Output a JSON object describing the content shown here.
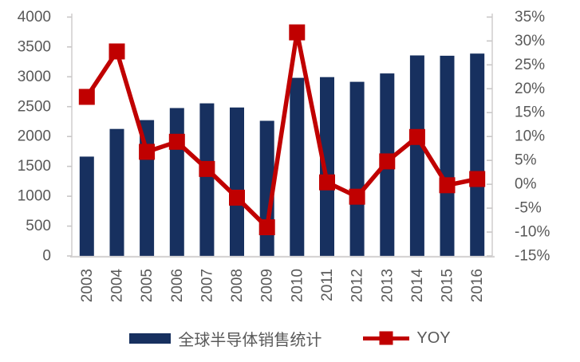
{
  "chart_data": {
    "type": "combo-bar-line",
    "title": "",
    "categories": [
      "2003",
      "2004",
      "2005",
      "2006",
      "2007",
      "2008",
      "2009",
      "2010",
      "2011",
      "2012",
      "2013",
      "2014",
      "2015",
      "2016"
    ],
    "series": [
      {
        "name": "全球半导体销售统计",
        "type": "bar",
        "axis": "left",
        "values": [
          1664,
          2127,
          2275,
          2476,
          2556,
          2486,
          2263,
          2983,
          2995,
          2916,
          3056,
          3358,
          3352,
          3389
        ]
      },
      {
        "name": "YOY",
        "type": "line",
        "axis": "right",
        "unit": "%",
        "values": [
          18.3,
          27.8,
          6.8,
          8.9,
          3.2,
          -2.8,
          -9.0,
          31.8,
          0.4,
          -2.6,
          4.8,
          9.9,
          -0.2,
          1.1
        ]
      }
    ],
    "left_axis": {
      "min": 0,
      "max": 4000,
      "step": 500,
      "tick_labels": [
        "0",
        "500",
        "1000",
        "1500",
        "2000",
        "2500",
        "3000",
        "3500",
        "4000"
      ]
    },
    "right_axis": {
      "min": -15,
      "max": 35,
      "step": 5,
      "tick_labels": [
        "-15%",
        "-10%",
        "-5%",
        "0%",
        "5%",
        "10%",
        "15%",
        "20%",
        "25%",
        "30%",
        "35%"
      ]
    },
    "grid": false,
    "legend_position": "bottom"
  },
  "colors": {
    "bar": "#17305F",
    "line": "#C00000",
    "axis_line": "#D6D4D4",
    "tick": "#C9C7C7",
    "label_text": "#595959"
  }
}
